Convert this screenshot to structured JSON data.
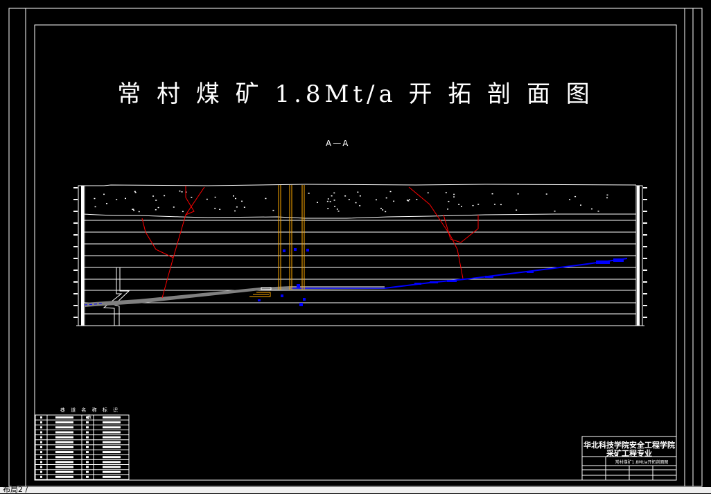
{
  "drawing": {
    "title": "常 村 煤 矿 1.8Mt/a 开 拓 剖 面 图",
    "section_label": "A—A"
  },
  "legend_table": {
    "title": "巷 道 名 称 标 识 表",
    "rows": 13
  },
  "title_block": {
    "school": "华北科技学院安全工程学院",
    "major": "采矿工程专业",
    "drawing_name": "常村煤矿1.8Mt/a开拓剖面图"
  },
  "layout_tab": {
    "label": "布局2 /"
  },
  "colors": {
    "background": "#000000",
    "fault_lines": "#ff0000",
    "shafts": "#ffaa00",
    "roadway": "#808080",
    "seam": "#0000ff"
  }
}
